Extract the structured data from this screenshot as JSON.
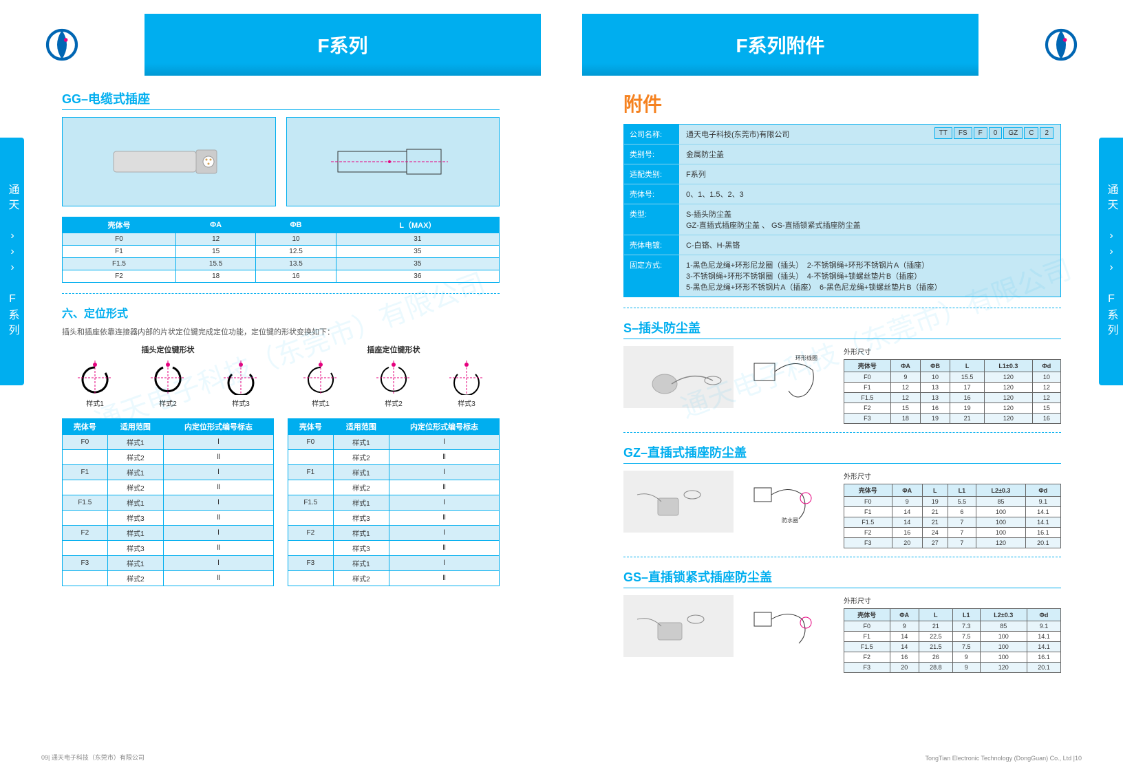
{
  "header": {
    "left_title": "F系列",
    "right_title": "F系列附件"
  },
  "side_tab": "通天 ››› F系列",
  "left_page": {
    "section1_title": "GG–电缆式插座",
    "tbl1": {
      "headers": [
        "壳体号",
        "ΦA",
        "ΦB",
        "L（MAX）"
      ],
      "rows": [
        [
          "F0",
          "12",
          "10",
          "31"
        ],
        [
          "F1",
          "15",
          "12.5",
          "35"
        ],
        [
          "F1.5",
          "15.5",
          "13.5",
          "35"
        ],
        [
          "F2",
          "18",
          "16",
          "36"
        ]
      ]
    },
    "section2_title": "六、定位形式",
    "section2_desc": "插头和插座依靠连接器内部的片状定位键完成定位功能，定位键的形状变换如下：",
    "key_left_label": "插头定位键形状",
    "key_right_label": "插座定位键形状",
    "key_styles": [
      "样式1",
      "样式2",
      "样式3"
    ],
    "tbl2": {
      "headers": [
        "壳体号",
        "适用范围",
        "内定位形式编号标志"
      ],
      "rows": [
        [
          "F0",
          "样式1",
          "Ⅰ"
        ],
        [
          "",
          "样式2",
          "Ⅱ"
        ],
        [
          "F1",
          "样式1",
          "Ⅰ"
        ],
        [
          "",
          "样式2",
          "Ⅱ"
        ],
        [
          "F1.5",
          "样式1",
          "Ⅰ"
        ],
        [
          "",
          "样式3",
          "Ⅱ"
        ],
        [
          "F2",
          "样式1",
          "Ⅰ"
        ],
        [
          "",
          "样式3",
          "Ⅱ"
        ],
        [
          "F3",
          "样式1",
          "Ⅰ"
        ],
        [
          "",
          "样式2",
          "Ⅱ"
        ]
      ]
    },
    "footer": "09| 通天电子科技（东莞市）有限公司"
  },
  "right_page": {
    "acc_title": "附件",
    "info": {
      "company_label": "公司名称:",
      "company": "通天电子科技(东莞市)有限公司",
      "codes": [
        "TT",
        "FS",
        "F",
        "0",
        "GZ",
        "C",
        "2"
      ],
      "cat_label": "类别号:",
      "cat": "金属防尘盖",
      "match_label": "适配类别:",
      "match": "F系列",
      "shell_label": "壳体号:",
      "shell": "0、1、1.5、2、3",
      "type_label": "类型:",
      "type": "S-插头防尘盖\nGZ-直插式插座防尘盖 、 GS-直插锁紧式插座防尘盖",
      "plate_label": "壳体电镀:",
      "plate": "C-白铬、H-黑铬",
      "fix_label": "固定方式:",
      "fix": "1-黑色尼龙绳+环形尼龙圈（插头）　2-不锈钢绳+环形不锈钢片A（插座）\n3-不锈钢绳+环形不锈钢圈（插头）　4-不锈钢绳+锁螺丝垫片B（插座）\n5-黑色尼龙绳+环形不锈钢片A（插座）　6-黑色尼龙绳+锁螺丝垫片B（插座）"
    },
    "s_title": "S–插头防尘盖",
    "s_tbl_title": "外形尺寸",
    "s_tbl": {
      "headers": [
        "壳体号",
        "ΦA",
        "ΦB",
        "L",
        "L1±0.3",
        "Φd"
      ],
      "rows": [
        [
          "F0",
          "9",
          "10",
          "15.5",
          "120",
          "10"
        ],
        [
          "F1",
          "12",
          "13",
          "17",
          "120",
          "12"
        ],
        [
          "F1.5",
          "12",
          "13",
          "16",
          "120",
          "12"
        ],
        [
          "F2",
          "15",
          "16",
          "19",
          "120",
          "15"
        ],
        [
          "F3",
          "18",
          "19",
          "21",
          "120",
          "16"
        ]
      ]
    },
    "gz_title": "GZ–直插式插座防尘盖",
    "gz_tbl": {
      "headers": [
        "壳体号",
        "ΦA",
        "L",
        "L1",
        "L2±0.3",
        "Φd"
      ],
      "rows": [
        [
          "F0",
          "9",
          "19",
          "5.5",
          "85",
          "9.1"
        ],
        [
          "F1",
          "14",
          "21",
          "6",
          "100",
          "14.1"
        ],
        [
          "F1.5",
          "14",
          "21",
          "7",
          "100",
          "14.1"
        ],
        [
          "F2",
          "16",
          "24",
          "7",
          "100",
          "16.1"
        ],
        [
          "F3",
          "20",
          "27",
          "7",
          "120",
          "20.1"
        ]
      ]
    },
    "gs_title": "GS–直插锁紧式插座防尘盖",
    "gs_tbl": {
      "headers": [
        "壳体号",
        "ΦA",
        "L",
        "L1",
        "L2±0.3",
        "Φd"
      ],
      "rows": [
        [
          "F0",
          "9",
          "21",
          "7.3",
          "85",
          "9.1"
        ],
        [
          "F1",
          "14",
          "22.5",
          "7.5",
          "100",
          "14.1"
        ],
        [
          "F1.5",
          "14",
          "21.5",
          "7.5",
          "100",
          "14.1"
        ],
        [
          "F2",
          "16",
          "26",
          "9",
          "100",
          "16.1"
        ],
        [
          "F3",
          "20",
          "28.8",
          "9",
          "120",
          "20.1"
        ]
      ]
    },
    "footer": "TongTian Electronic Technology (DongGuan) Co., Ltd |10"
  },
  "watermark": "通天电子科技（东莞市）有限公司",
  "colors": {
    "primary": "#00aeef",
    "accent": "#f58220",
    "light": "#c5e8f5"
  }
}
